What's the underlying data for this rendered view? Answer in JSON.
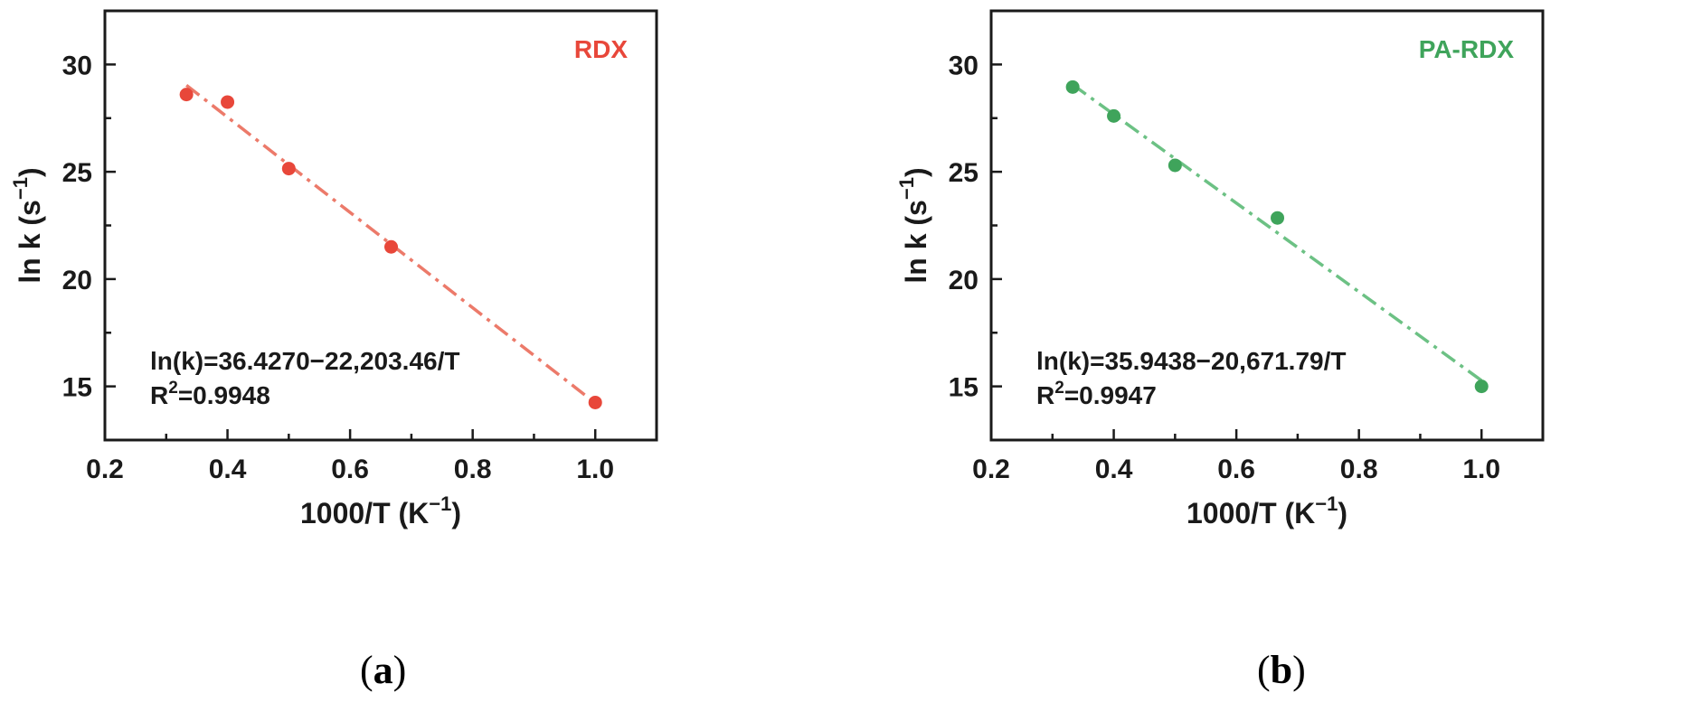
{
  "chart_data": [
    {
      "type": "scatter",
      "panel": "a",
      "xlabel_main": "1000/T (K",
      "xlabel_sup": "−1",
      "xlabel_end": ")",
      "ylabel_main": "ln k (s",
      "ylabel_sup": "−1",
      "ylabel_end": ")",
      "xlim": [
        0.2,
        1.1
      ],
      "ylim": [
        12.5,
        32.5
      ],
      "xticks": [
        0.2,
        0.4,
        0.6,
        0.8,
        1.0
      ],
      "xtick_labels": [
        "0.2",
        "0.4",
        "0.6",
        "0.8",
        "1.0"
      ],
      "yticks": [
        15,
        20,
        25,
        30
      ],
      "ytick_labels": [
        "15",
        "20",
        "25",
        "30"
      ],
      "grid": false,
      "series": [
        {
          "name": "RDX",
          "color": "#e8473a",
          "line_color": "#ec7a6a",
          "x": [
            0.333,
            0.4,
            0.5,
            0.667,
            1.0
          ],
          "y": [
            28.6,
            28.25,
            25.15,
            21.5,
            14.25
          ],
          "fit": {
            "intercept": 36.427,
            "slope": -22.20346,
            "x_range": [
              0.333,
              1.0
            ]
          }
        }
      ],
      "equation": "ln(k)=36.4270−22,203.46/T",
      "r2_label": "R",
      "r2_sup": "2",
      "r2_value": "=0.9948",
      "caption_letter": "a"
    },
    {
      "type": "scatter",
      "panel": "b",
      "xlabel_main": "1000/T (K",
      "xlabel_sup": "−1",
      "xlabel_end": ")",
      "ylabel_main": "ln k (s",
      "ylabel_sup": "−1",
      "ylabel_end": ")",
      "xlim": [
        0.2,
        1.1
      ],
      "ylim": [
        12.5,
        32.5
      ],
      "xticks": [
        0.2,
        0.4,
        0.6,
        0.8,
        1.0
      ],
      "xtick_labels": [
        "0.2",
        "0.4",
        "0.6",
        "0.8",
        "1.0"
      ],
      "yticks": [
        15,
        20,
        25,
        30
      ],
      "ytick_labels": [
        "15",
        "20",
        "25",
        "30"
      ],
      "grid": false,
      "series": [
        {
          "name": "PA-RDX",
          "color": "#3fa45b",
          "line_color": "#6cc184",
          "x": [
            0.333,
            0.4,
            0.5,
            0.667,
            1.0
          ],
          "y": [
            28.95,
            27.6,
            25.3,
            22.85,
            15.0
          ],
          "fit": {
            "intercept": 35.9438,
            "slope": -20.67179,
            "x_range": [
              0.333,
              1.0
            ]
          }
        }
      ],
      "equation": "ln(k)=35.9438−20,671.79/T",
      "r2_label": "R",
      "r2_sup": "2",
      "r2_value": "=0.9947",
      "caption_letter": "b"
    }
  ]
}
